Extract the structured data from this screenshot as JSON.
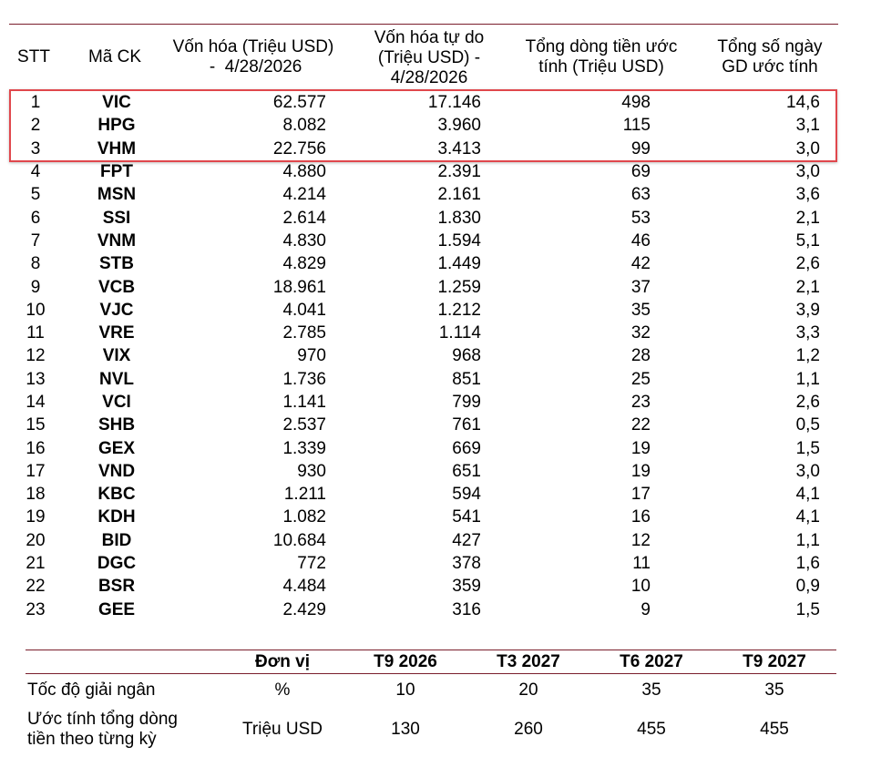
{
  "table": {
    "headers": {
      "stt": "STT",
      "code": "Mã CK",
      "cap": [
        "Vốn hóa (Triệu USD)",
        " -  4/28/2026"
      ],
      "free": [
        "Vốn hóa tự do",
        "(Triệu USD) -",
        "4/28/2026"
      ],
      "flow": [
        "Tổng dòng tiền ước",
        "tính (Triệu USD)"
      ],
      "days": [
        "Tổng số ngày",
        "GD ước tính"
      ]
    },
    "rows": [
      [
        "1",
        "VIC",
        "62.577",
        "17.146",
        "498",
        "14,6"
      ],
      [
        "2",
        "HPG",
        "8.082",
        "3.960",
        "115",
        "3,1"
      ],
      [
        "3",
        "VHM",
        "22.756",
        "3.413",
        "99",
        "3,0"
      ],
      [
        "4",
        "FPT",
        "4.880",
        "2.391",
        "69",
        "3,0"
      ],
      [
        "5",
        "MSN",
        "4.214",
        "2.161",
        "63",
        "3,6"
      ],
      [
        "6",
        "SSI",
        "2.614",
        "1.830",
        "53",
        "2,1"
      ],
      [
        "7",
        "VNM",
        "4.830",
        "1.594",
        "46",
        "5,1"
      ],
      [
        "8",
        "STB",
        "4.829",
        "1.449",
        "42",
        "2,6"
      ],
      [
        "9",
        "VCB",
        "18.961",
        "1.259",
        "37",
        "2,1"
      ],
      [
        "10",
        "VJC",
        "4.041",
        "1.212",
        "35",
        "3,9"
      ],
      [
        "11",
        "VRE",
        "2.785",
        "1.114",
        "32",
        "3,3"
      ],
      [
        "12",
        "VIX",
        "970",
        "968",
        "28",
        "1,2"
      ],
      [
        "13",
        "NVL",
        "1.736",
        "851",
        "25",
        "1,1"
      ],
      [
        "14",
        "VCI",
        "1.141",
        "799",
        "23",
        "2,6"
      ],
      [
        "15",
        "SHB",
        "2.537",
        "761",
        "22",
        "0,5"
      ],
      [
        "16",
        "GEX",
        "1.339",
        "669",
        "19",
        "1,5"
      ],
      [
        "17",
        "VND",
        "930",
        "651",
        "19",
        "3,0"
      ],
      [
        "18",
        "KBC",
        "1.211",
        "594",
        "17",
        "4,1"
      ],
      [
        "19",
        "KDH",
        "1.082",
        "541",
        "16",
        "4,1"
      ],
      [
        "20",
        "BID",
        "10.684",
        "427",
        "12",
        "1,1"
      ],
      [
        "21",
        "DGC",
        "772",
        "378",
        "11",
        "1,6"
      ],
      [
        "22",
        "BSR",
        "4.484",
        "359",
        "10",
        "0,9"
      ],
      [
        "23",
        "GEE",
        "2.429",
        "316",
        "9",
        "1,5"
      ]
    ]
  },
  "schedule": {
    "headers": [
      "Đơn vị",
      "T9 2026",
      "T3 2027",
      "T6 2027",
      "T9 2027"
    ],
    "rows": [
      {
        "label": [
          "Tốc độ giải ngân"
        ],
        "unit": "%",
        "values": [
          "10",
          "20",
          "35",
          "35"
        ]
      },
      {
        "label": [
          "Ước tính tổng dòng",
          "tiền theo từng kỳ"
        ],
        "unit": "Triệu USD",
        "values": [
          "130",
          "260",
          "455",
          "455"
        ]
      }
    ]
  },
  "colors": {
    "rule": "#7a1e2c",
    "highlight": "#e0474c"
  }
}
